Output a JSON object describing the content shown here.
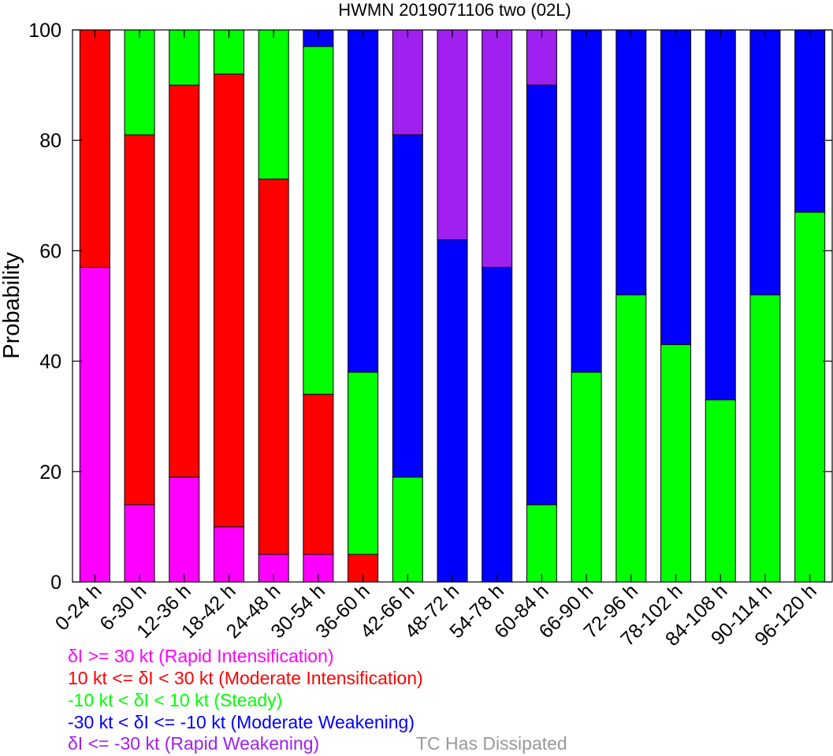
{
  "chart_data": {
    "type": "bar",
    "stacked": true,
    "title": "HWMN 2019071106 two (02L)",
    "xlabel": "",
    "ylabel": "Probability",
    "ylim": [
      0,
      100
    ],
    "yticks": [
      0,
      20,
      40,
      60,
      80,
      100
    ],
    "categories": [
      "0-24 h",
      "6-30 h",
      "12-36 h",
      "18-42 h",
      "24-48 h",
      "30-54 h",
      "36-60 h",
      "42-66 h",
      "48-72 h",
      "54-78 h",
      "60-84 h",
      "66-90 h",
      "72-96 h",
      "78-102 h",
      "84-108 h",
      "90-114 h",
      "96-120 h"
    ],
    "series": [
      {
        "name": "δI >= 30 kt (Rapid Intensification)",
        "color": "#ff00ff",
        "values": [
          57,
          14,
          19,
          10,
          5,
          5,
          0,
          0,
          0,
          0,
          0,
          0,
          0,
          0,
          0,
          0,
          0
        ]
      },
      {
        "name": "10 kt <= δI < 30 kt (Moderate Intensification)",
        "color": "#ff0000",
        "values": [
          43,
          67,
          71,
          82,
          68,
          29,
          5,
          0,
          0,
          0,
          0,
          0,
          0,
          0,
          0,
          0,
          0
        ]
      },
      {
        "name": "-10 kt < δI < 10 kt (Steady)",
        "color": "#00ff00",
        "values": [
          0,
          19,
          10,
          8,
          27,
          63,
          33,
          19,
          0,
          0,
          14,
          38,
          52,
          43,
          33,
          52,
          67
        ]
      },
      {
        "name": "-30 kt < δI <= -10 kt (Moderate Weakening)",
        "color": "#0000ff",
        "values": [
          0,
          0,
          0,
          0,
          0,
          3,
          62,
          62,
          62,
          57,
          76,
          62,
          48,
          57,
          67,
          48,
          33
        ]
      },
      {
        "name": "δI <= -30 kt (Rapid Weakening)",
        "color": "#a020f0",
        "values": [
          0,
          0,
          0,
          0,
          0,
          0,
          0,
          19,
          38,
          43,
          10,
          0,
          0,
          0,
          0,
          0,
          0
        ]
      }
    ],
    "extra_legend": {
      "label": "TC Has Dissipated",
      "color": "#999999"
    }
  }
}
